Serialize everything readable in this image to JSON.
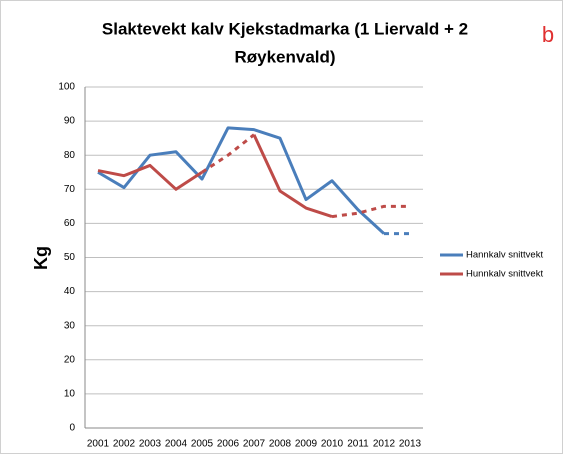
{
  "chart_data": {
    "type": "line",
    "title": [
      "Slaktevekt kalv Kjekstadmarka (1 Liervald + 2",
      "Røykenvald)"
    ],
    "corner_label": "b",
    "y_label": "Kg",
    "categories": [
      "2001",
      "2002",
      "2003",
      "2004",
      "2005",
      "2006",
      "2007",
      "2008",
      "2009",
      "2010",
      "2011",
      "2012",
      "2013"
    ],
    "series": [
      {
        "name": "Hannkalv snittvekt",
        "color": "#4a7ebb",
        "values": [
          75,
          70.5,
          80,
          81,
          73,
          88,
          87.5,
          85,
          67,
          72.5,
          64,
          57,
          57
        ],
        "dashed_segments": [
          [
            11,
            12
          ]
        ]
      },
      {
        "name": "Hunnkalv snittvekt",
        "color": "#be4b48",
        "values": [
          75.5,
          74,
          77,
          70,
          75,
          80,
          86,
          69.5,
          64.5,
          62,
          63,
          65,
          65
        ],
        "dashed_segments": [
          [
            4,
            6
          ],
          [
            9,
            12
          ]
        ]
      }
    ],
    "ylim": [
      0,
      100
    ],
    "yticks": [
      0,
      10,
      20,
      30,
      40,
      50,
      60,
      70,
      80,
      90,
      100
    ],
    "grid": true,
    "legend": "right"
  }
}
